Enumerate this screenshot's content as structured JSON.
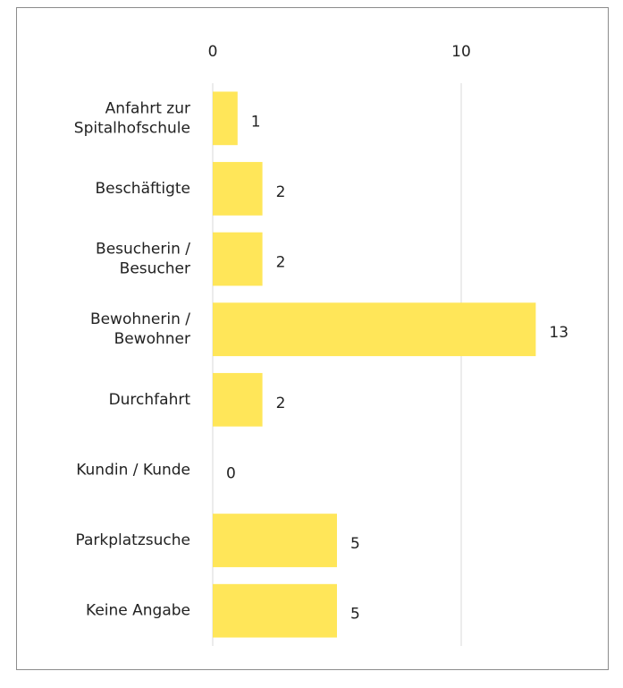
{
  "chart_data": {
    "type": "hbar",
    "categories": [
      "Anfahrt zur\nSpitalhofschule",
      "Beschäftigte",
      "Besucherin /\nBesucher",
      "Bewohnerin /\nBewohner",
      "Durchfahrt",
      "Kundin / Kunde",
      "Parkplatzsuche",
      "Keine Angabe"
    ],
    "values": [
      1,
      2,
      2,
      13,
      2,
      0,
      5,
      5
    ],
    "color": "#ffe659",
    "xlim": [
      0,
      15
    ],
    "xticks": [
      0,
      10
    ],
    "grid": true
  }
}
